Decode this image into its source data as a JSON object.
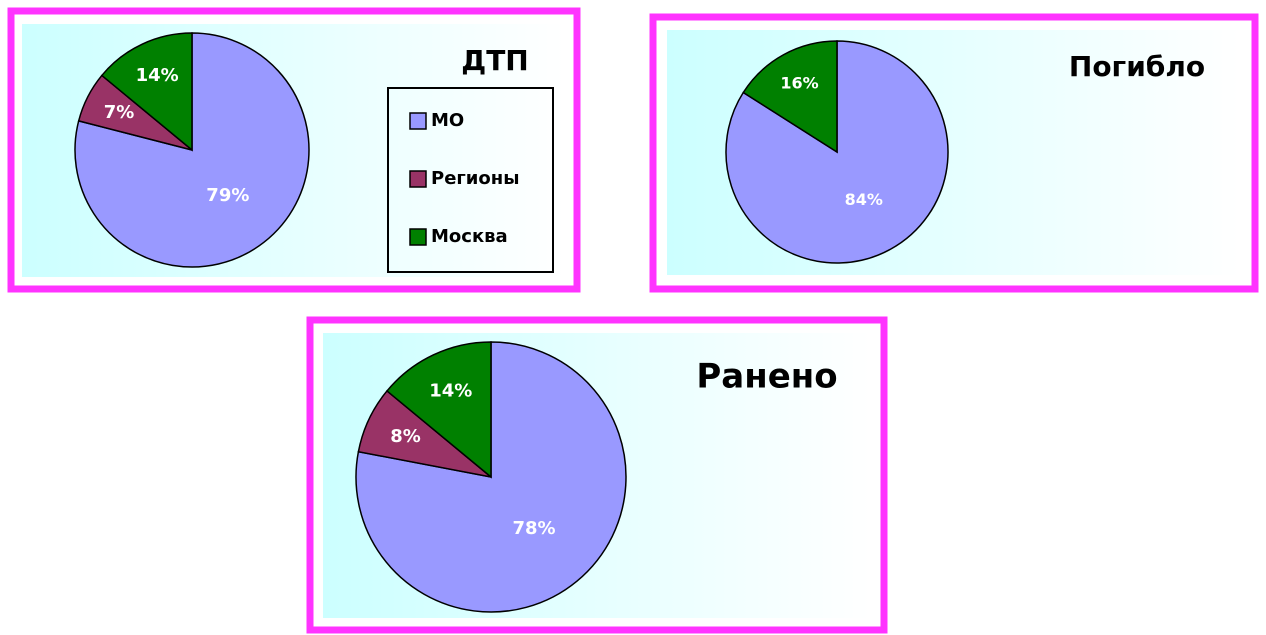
{
  "chart_data": [
    {
      "type": "pie",
      "title": "ДТП",
      "categories": [
        "МО",
        "Регионы",
        "Москва"
      ],
      "values": [
        79,
        7,
        14
      ],
      "value_labels": [
        "79%",
        "7%",
        "14%"
      ],
      "colors": [
        "#9999ff",
        "#993366",
        "#008000"
      ],
      "legend": "right"
    },
    {
      "type": "pie",
      "title": "Погибло",
      "values": [
        84,
        16
      ],
      "value_labels": [
        "84%",
        "16%"
      ],
      "colors": [
        "#9999ff",
        "#008000"
      ]
    },
    {
      "type": "pie",
      "title": "Ранено",
      "values": [
        78,
        8,
        14
      ],
      "value_labels": [
        "78%",
        "8%",
        "14%"
      ],
      "colors": [
        "#9999ff",
        "#993366",
        "#008000"
      ]
    }
  ]
}
